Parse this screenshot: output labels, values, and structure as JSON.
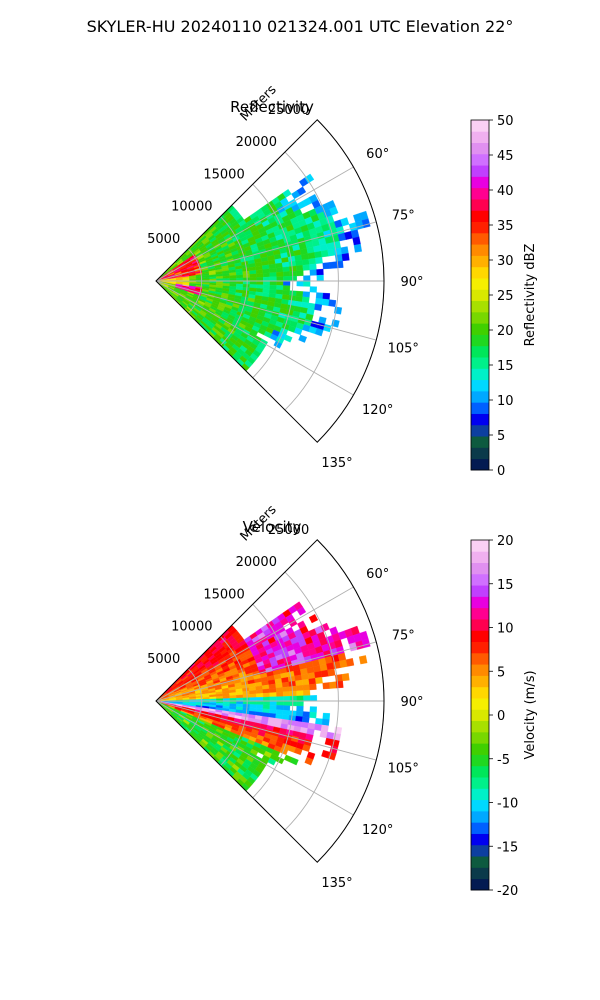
{
  "figure": {
    "title": "SKYLER-HU  20240110  021324.001 UTC Elevation 22°"
  },
  "chart_data": [
    {
      "type": "heatmap",
      "projection": "polar-sector",
      "title": "Reflectivity",
      "radial_label": "Meters",
      "radial_ticks": [
        "5000",
        "10000",
        "15000",
        "20000",
        "25000"
      ],
      "radial_values": [
        5000,
        10000,
        15000,
        20000,
        25000
      ],
      "radial_max": 25000,
      "azimuth_ticks": [
        "60°",
        "75°",
        "90°",
        "105°",
        "120°",
        "135°"
      ],
      "azimuth_values": [
        60,
        75,
        90,
        105,
        120,
        135
      ],
      "azimuth_range": [
        45,
        135
      ],
      "grid": true,
      "colorbar": {
        "label": "Reflectivity dBZ",
        "ticks": [
          "0",
          "5",
          "10",
          "15",
          "20",
          "25",
          "30",
          "35",
          "40",
          "45",
          "50"
        ],
        "range": [
          0,
          50
        ],
        "colors": [
          "#031b52",
          "#0b3a4a",
          "#0d5a3f",
          "#0d3fa0",
          "#0000f0",
          "#0060ff",
          "#00a8ff",
          "#00d8ff",
          "#00f0c8",
          "#00f08a",
          "#00e65a",
          "#20d820",
          "#40d000",
          "#78d800",
          "#a8e000",
          "#d8e800",
          "#f5ef00",
          "#ffd800",
          "#ffb000",
          "#ff8a00",
          "#ff5a00",
          "#ff2000",
          "#ff0000",
          "#ff0050",
          "#ff0090",
          "#e800e0",
          "#c040ff",
          "#d070ff",
          "#e090f0",
          "#f0b0f0",
          "#fad0f5"
        ]
      },
      "echo_summary": "Echoes extend about 25 km; values mostly 15–30 dBZ with 35–45 dBZ cores near the radar"
    },
    {
      "type": "heatmap",
      "projection": "polar-sector",
      "title": "Velocity",
      "radial_label": "Meters",
      "radial_ticks": [
        "5000",
        "10000",
        "15000",
        "20000",
        "25000"
      ],
      "radial_values": [
        5000,
        10000,
        15000,
        20000,
        25000
      ],
      "radial_max": 25000,
      "azimuth_ticks": [
        "60°",
        "75°",
        "90°",
        "105°",
        "120°",
        "135°"
      ],
      "azimuth_values": [
        60,
        75,
        90,
        105,
        120,
        135
      ],
      "azimuth_range": [
        45,
        135
      ],
      "grid": true,
      "colorbar": {
        "label": "Velocity (m/s)",
        "ticks": [
          "-20",
          "-15",
          "-10",
          "-5",
          "0",
          "5",
          "10",
          "15",
          "20"
        ],
        "range": [
          -20,
          20
        ],
        "colors": [
          "#031b52",
          "#0b3a4a",
          "#0d5a3f",
          "#0d3fa0",
          "#0000f0",
          "#0060ff",
          "#00a8ff",
          "#00d8ff",
          "#00f0c8",
          "#00f08a",
          "#00e65a",
          "#20d820",
          "#40d000",
          "#78d800",
          "#a8e000",
          "#d8e800",
          "#f5ef00",
          "#ffd800",
          "#ffb000",
          "#ff8a00",
          "#ff5a00",
          "#ff2000",
          "#ff0000",
          "#ff0050",
          "#ff0090",
          "#e800e0",
          "#c040ff",
          "#d070ff",
          "#e090f0",
          "#f0b0f0",
          "#fad0f5"
        ]
      },
      "echo_summary": "Outbound (warm) velocities north and south of radial; inbound (cyan/green) band along 90–100° azimuth with folding near 100–110°"
    }
  ]
}
